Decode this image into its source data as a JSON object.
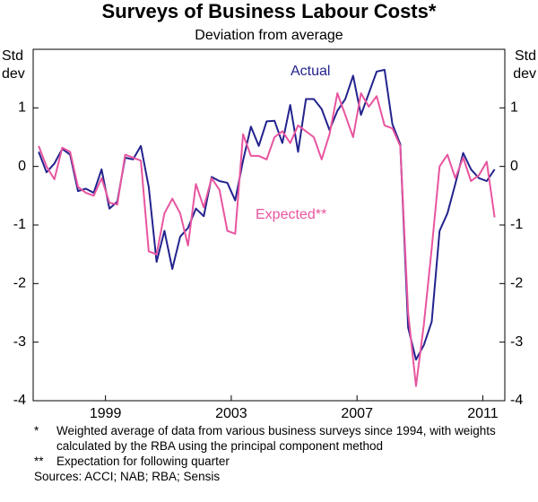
{
  "chart_data": {
    "type": "line",
    "title": "Surveys of Business Labour Costs*",
    "subtitle": "Deviation from average",
    "y_label": "Std dev",
    "xlim": [
      1996.7,
      2011.7
    ],
    "xticks": [
      1999,
      2003,
      2007,
      2011
    ],
    "ylim": [
      -4,
      2
    ],
    "yticks": [
      -4,
      -3,
      -2,
      -1,
      0,
      1
    ],
    "grid": false,
    "x": [
      1996.875,
      1997.125,
      1997.375,
      1997.625,
      1997.875,
      1998.125,
      1998.375,
      1998.625,
      1998.875,
      1999.125,
      1999.375,
      1999.625,
      1999.875,
      2000.125,
      2000.375,
      2000.625,
      2000.875,
      2001.125,
      2001.375,
      2001.625,
      2001.875,
      2002.125,
      2002.375,
      2002.625,
      2002.875,
      2003.125,
      2003.375,
      2003.625,
      2003.875,
      2004.125,
      2004.375,
      2004.625,
      2004.875,
      2005.125,
      2005.375,
      2005.625,
      2005.875,
      2006.125,
      2006.375,
      2006.625,
      2006.875,
      2007.125,
      2007.375,
      2007.625,
      2007.875,
      2008.125,
      2008.375,
      2008.625,
      2008.875,
      2009.125,
      2009.375,
      2009.625,
      2009.875,
      2010.125,
      2010.375,
      2010.625,
      2010.875,
      2011.125,
      2011.375
    ],
    "series": [
      {
        "name": "Actual",
        "color": "#23238e",
        "values": [
          0.25,
          -0.1,
          0.05,
          0.3,
          0.2,
          -0.42,
          -0.38,
          -0.45,
          -0.05,
          -0.72,
          -0.6,
          0.15,
          0.12,
          0.35,
          -0.35,
          -1.63,
          -1.1,
          -1.75,
          -1.2,
          -1.05,
          -0.72,
          -0.85,
          -0.18,
          -0.25,
          -0.28,
          -0.58,
          0.1,
          0.68,
          0.35,
          0.77,
          0.78,
          0.4,
          1.05,
          0.25,
          1.15,
          1.15,
          0.98,
          0.62,
          0.95,
          1.15,
          1.55,
          0.88,
          1.25,
          1.62,
          1.65,
          0.72,
          0.38,
          -2.75,
          -3.3,
          -3.05,
          -2.65,
          -1.1,
          -0.8,
          -0.3,
          0.23,
          -0.05,
          -0.2,
          -0.25,
          -0.05
        ]
      },
      {
        "name": "Expected**",
        "color": "#e8559f",
        "values": [
          0.35,
          0.0,
          -0.22,
          0.32,
          0.25,
          -0.35,
          -0.45,
          -0.5,
          -0.2,
          -0.62,
          -0.65,
          0.2,
          0.15,
          0.1,
          -1.45,
          -1.5,
          -0.8,
          -0.55,
          -0.8,
          -1.35,
          -0.3,
          -0.7,
          -0.2,
          -0.4,
          -1.1,
          -1.15,
          0.55,
          0.18,
          0.18,
          0.12,
          0.5,
          0.6,
          0.4,
          0.7,
          0.6,
          0.5,
          0.12,
          0.55,
          1.25,
          0.88,
          0.5,
          1.25,
          1.02,
          1.2,
          0.7,
          0.65,
          0.35,
          -2.5,
          -3.75,
          -2.7,
          -1.4,
          0.0,
          0.2,
          -0.2,
          0.15,
          -0.25,
          -0.15,
          0.08,
          -0.87
        ]
      }
    ],
    "notes": [
      {
        "mark": "*",
        "text": "Weighted average of data from various business surveys since 1994, with weights calculated by the RBA using the principal component method"
      },
      {
        "mark": "**",
        "text": "Expectation for following quarter"
      }
    ],
    "sources": "Sources: ACCI; NAB; RBA; Sensis"
  }
}
